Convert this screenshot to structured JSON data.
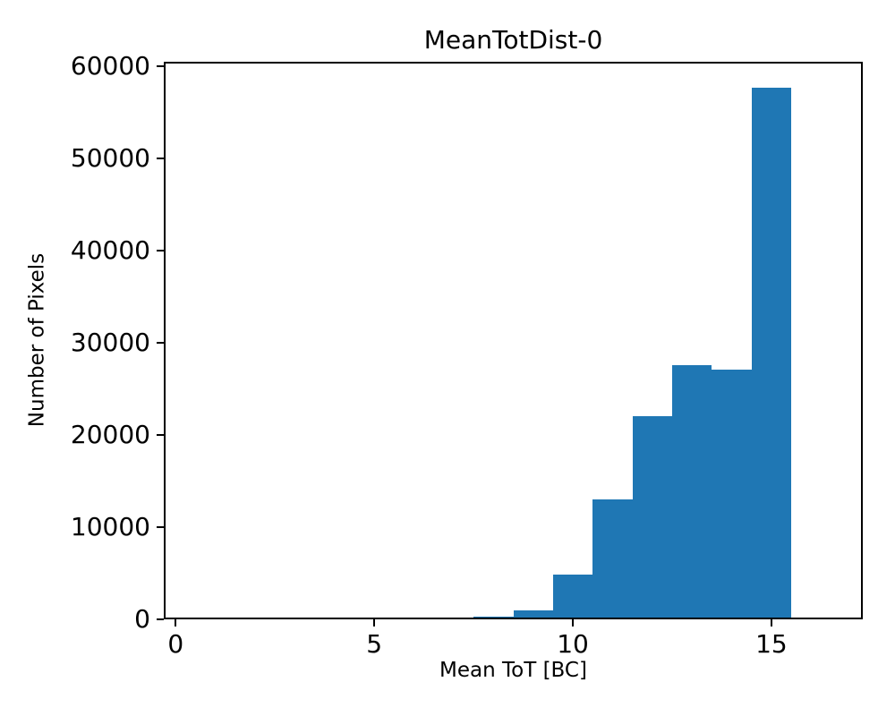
{
  "figure": {
    "title": "MeanTotDist-0",
    "xlabel": "Mean ToT [BC]",
    "ylabel": "Number of Pixels"
  },
  "chart_data": {
    "type": "bar",
    "subtype": "histogram",
    "title": "MeanTotDist-0",
    "xlabel": "Mean ToT [BC]",
    "ylabel": "Number of Pixels",
    "bar_color": "#1f77b4",
    "background_color": "#ffffff",
    "axis_color": "#000000",
    "grid": false,
    "legend": false,
    "xlim": [
      -0.3,
      17.3
    ],
    "ylim": [
      0,
      60480
    ],
    "xticks": [
      0,
      5,
      10,
      15
    ],
    "yticks": [
      0,
      10000,
      20000,
      30000,
      40000,
      50000,
      60000
    ],
    "bin_width": 1.0,
    "bin_centers": [
      8,
      9,
      10,
      11,
      12,
      13,
      14,
      15
    ],
    "values": [
      250,
      1000,
      4900,
      13000,
      22000,
      27600,
      27050,
      57700
    ]
  }
}
